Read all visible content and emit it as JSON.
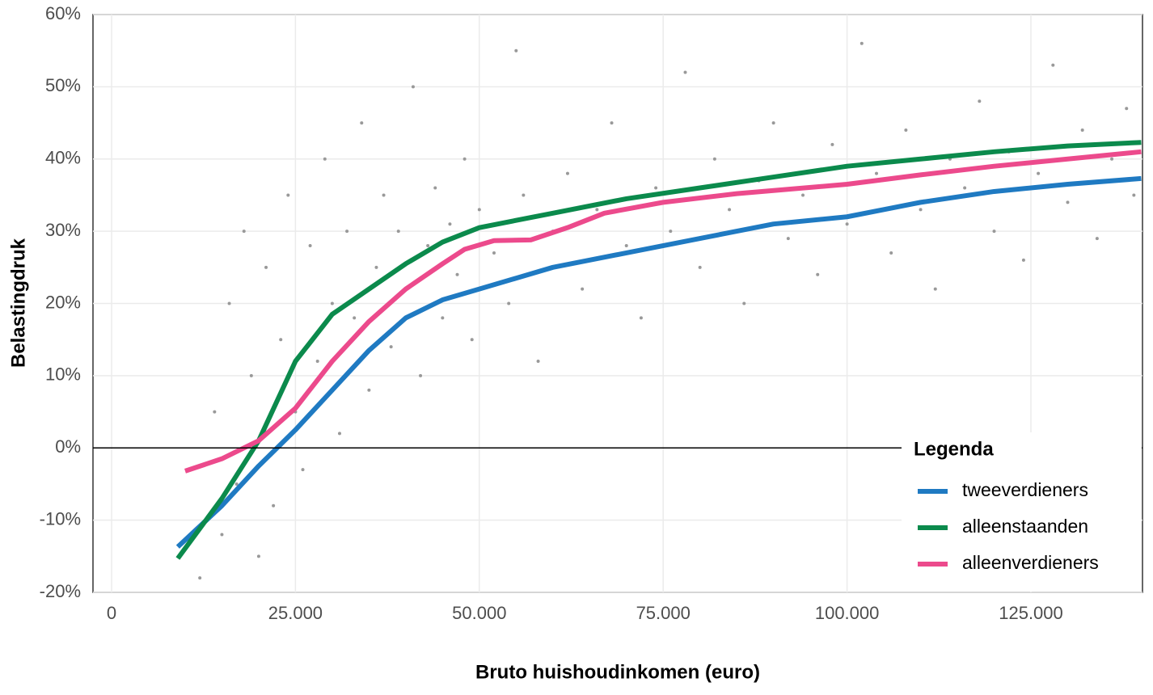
{
  "chart_data": {
    "type": "scatter-line",
    "x_label": "Bruto huishoudinkomen (euro)",
    "y_label": "Belastingdruk",
    "legend_title": "Legenda",
    "legend_position": "bottom-right",
    "grid": true,
    "hline": 0,
    "xlim": [
      -2530,
      140170
    ],
    "ylim": [
      -20,
      60
    ],
    "xticks": [
      0,
      {
        "value": 25000,
        "label": "25.000"
      },
      {
        "value": 50000,
        "label": "50.000"
      },
      {
        "value": 75000,
        "label": "75.000"
      },
      {
        "value": 100000,
        "label": "100.000"
      },
      {
        "value": 125000,
        "label": "125.000"
      }
    ],
    "yticks": [
      {
        "value": -20,
        "label": "-20%"
      },
      {
        "value": -10,
        "label": "-10%"
      },
      {
        "value": 0,
        "label": "0%"
      },
      {
        "value": 10,
        "label": "10%"
      },
      {
        "value": 20,
        "label": "20%"
      },
      {
        "value": 30,
        "label": "30%"
      },
      {
        "value": 40,
        "label": "40%"
      },
      {
        "value": 50,
        "label": "50%"
      },
      {
        "value": 60,
        "label": "60%"
      }
    ],
    "points": {
      "color": "#999999",
      "x": [
        12000,
        14000,
        15000,
        16000,
        17000,
        18000,
        19000,
        20000,
        21000,
        22000,
        23000,
        24000,
        25000,
        26000,
        27000,
        28000,
        29000,
        30000,
        31000,
        32000,
        33000,
        34000,
        35000,
        36000,
        37000,
        38000,
        39000,
        40000,
        41000,
        42000,
        43000,
        44000,
        45000,
        46000,
        47000,
        48000,
        49000,
        50000,
        52000,
        54000,
        55000,
        56000,
        58000,
        60000,
        62000,
        64000,
        66000,
        68000,
        70000,
        72000,
        74000,
        76000,
        78000,
        80000,
        82000,
        84000,
        86000,
        88000,
        90000,
        92000,
        94000,
        96000,
        98000,
        100000,
        102000,
        104000,
        106000,
        108000,
        110000,
        112000,
        114000,
        116000,
        118000,
        120000,
        122000,
        124000,
        126000,
        128000,
        130000,
        132000,
        134000,
        136000,
        138000,
        139000
      ],
      "y": [
        -18,
        5,
        -12,
        20,
        -5,
        30,
        10,
        -15,
        25,
        -8,
        15,
        35,
        5,
        -3,
        28,
        12,
        40,
        20,
        2,
        30,
        18,
        45,
        8,
        25,
        35,
        14,
        30,
        22,
        50,
        10,
        28,
        36,
        18,
        31,
        24,
        40,
        15,
        33,
        27,
        20,
        55,
        35,
        12,
        30,
        38,
        22,
        33,
        45,
        28,
        18,
        36,
        30,
        52,
        25,
        40,
        33,
        20,
        37,
        45,
        29,
        35,
        24,
        42,
        31,
        56,
        38,
        27,
        44,
        33,
        22,
        40,
        36,
        48,
        30,
        41,
        26,
        38,
        53,
        34,
        44,
        29,
        40,
        47,
        35
      ]
    },
    "series": [
      {
        "name": "tweeverdieners",
        "color": "#1f7ac2",
        "x": [
          9000,
          15000,
          20000,
          22500,
          25000,
          30000,
          35000,
          40000,
          45000,
          50000,
          55000,
          60000,
          70000,
          80000,
          90000,
          100000,
          110000,
          120000,
          130000,
          140000
        ],
        "values": [
          -13.7,
          -8,
          -2.5,
          0,
          2.5,
          8,
          13.5,
          18,
          20.5,
          22,
          23.5,
          25,
          27,
          29,
          31,
          32,
          34,
          35.5,
          36.5,
          37.3
        ]
      },
      {
        "name": "alleenstaanden",
        "color": "#0b8a4c",
        "x": [
          9000,
          15000,
          20000,
          25000,
          30000,
          35000,
          40000,
          45000,
          50000,
          60000,
          70000,
          80000,
          90000,
          100000,
          110000,
          120000,
          130000,
          140000
        ],
        "values": [
          -15.3,
          -7,
          1,
          12,
          18.5,
          22,
          25.5,
          28.5,
          30.5,
          32.5,
          34.5,
          36,
          37.5,
          39,
          40,
          41,
          41.8,
          42.3
        ]
      },
      {
        "name": "alleenverdieners",
        "color": "#ec4a8c",
        "x": [
          10000,
          15000,
          20000,
          25000,
          30000,
          35000,
          40000,
          45000,
          48000,
          52000,
          57000,
          62000,
          67000,
          75000,
          85000,
          100000,
          110000,
          120000,
          130000,
          140000
        ],
        "values": [
          -3.2,
          -1.5,
          1,
          5.5,
          12,
          17.5,
          22,
          25.5,
          27.5,
          28.7,
          28.8,
          30.5,
          32.5,
          34,
          35.2,
          36.5,
          37.8,
          39,
          40,
          41
        ]
      }
    ]
  }
}
